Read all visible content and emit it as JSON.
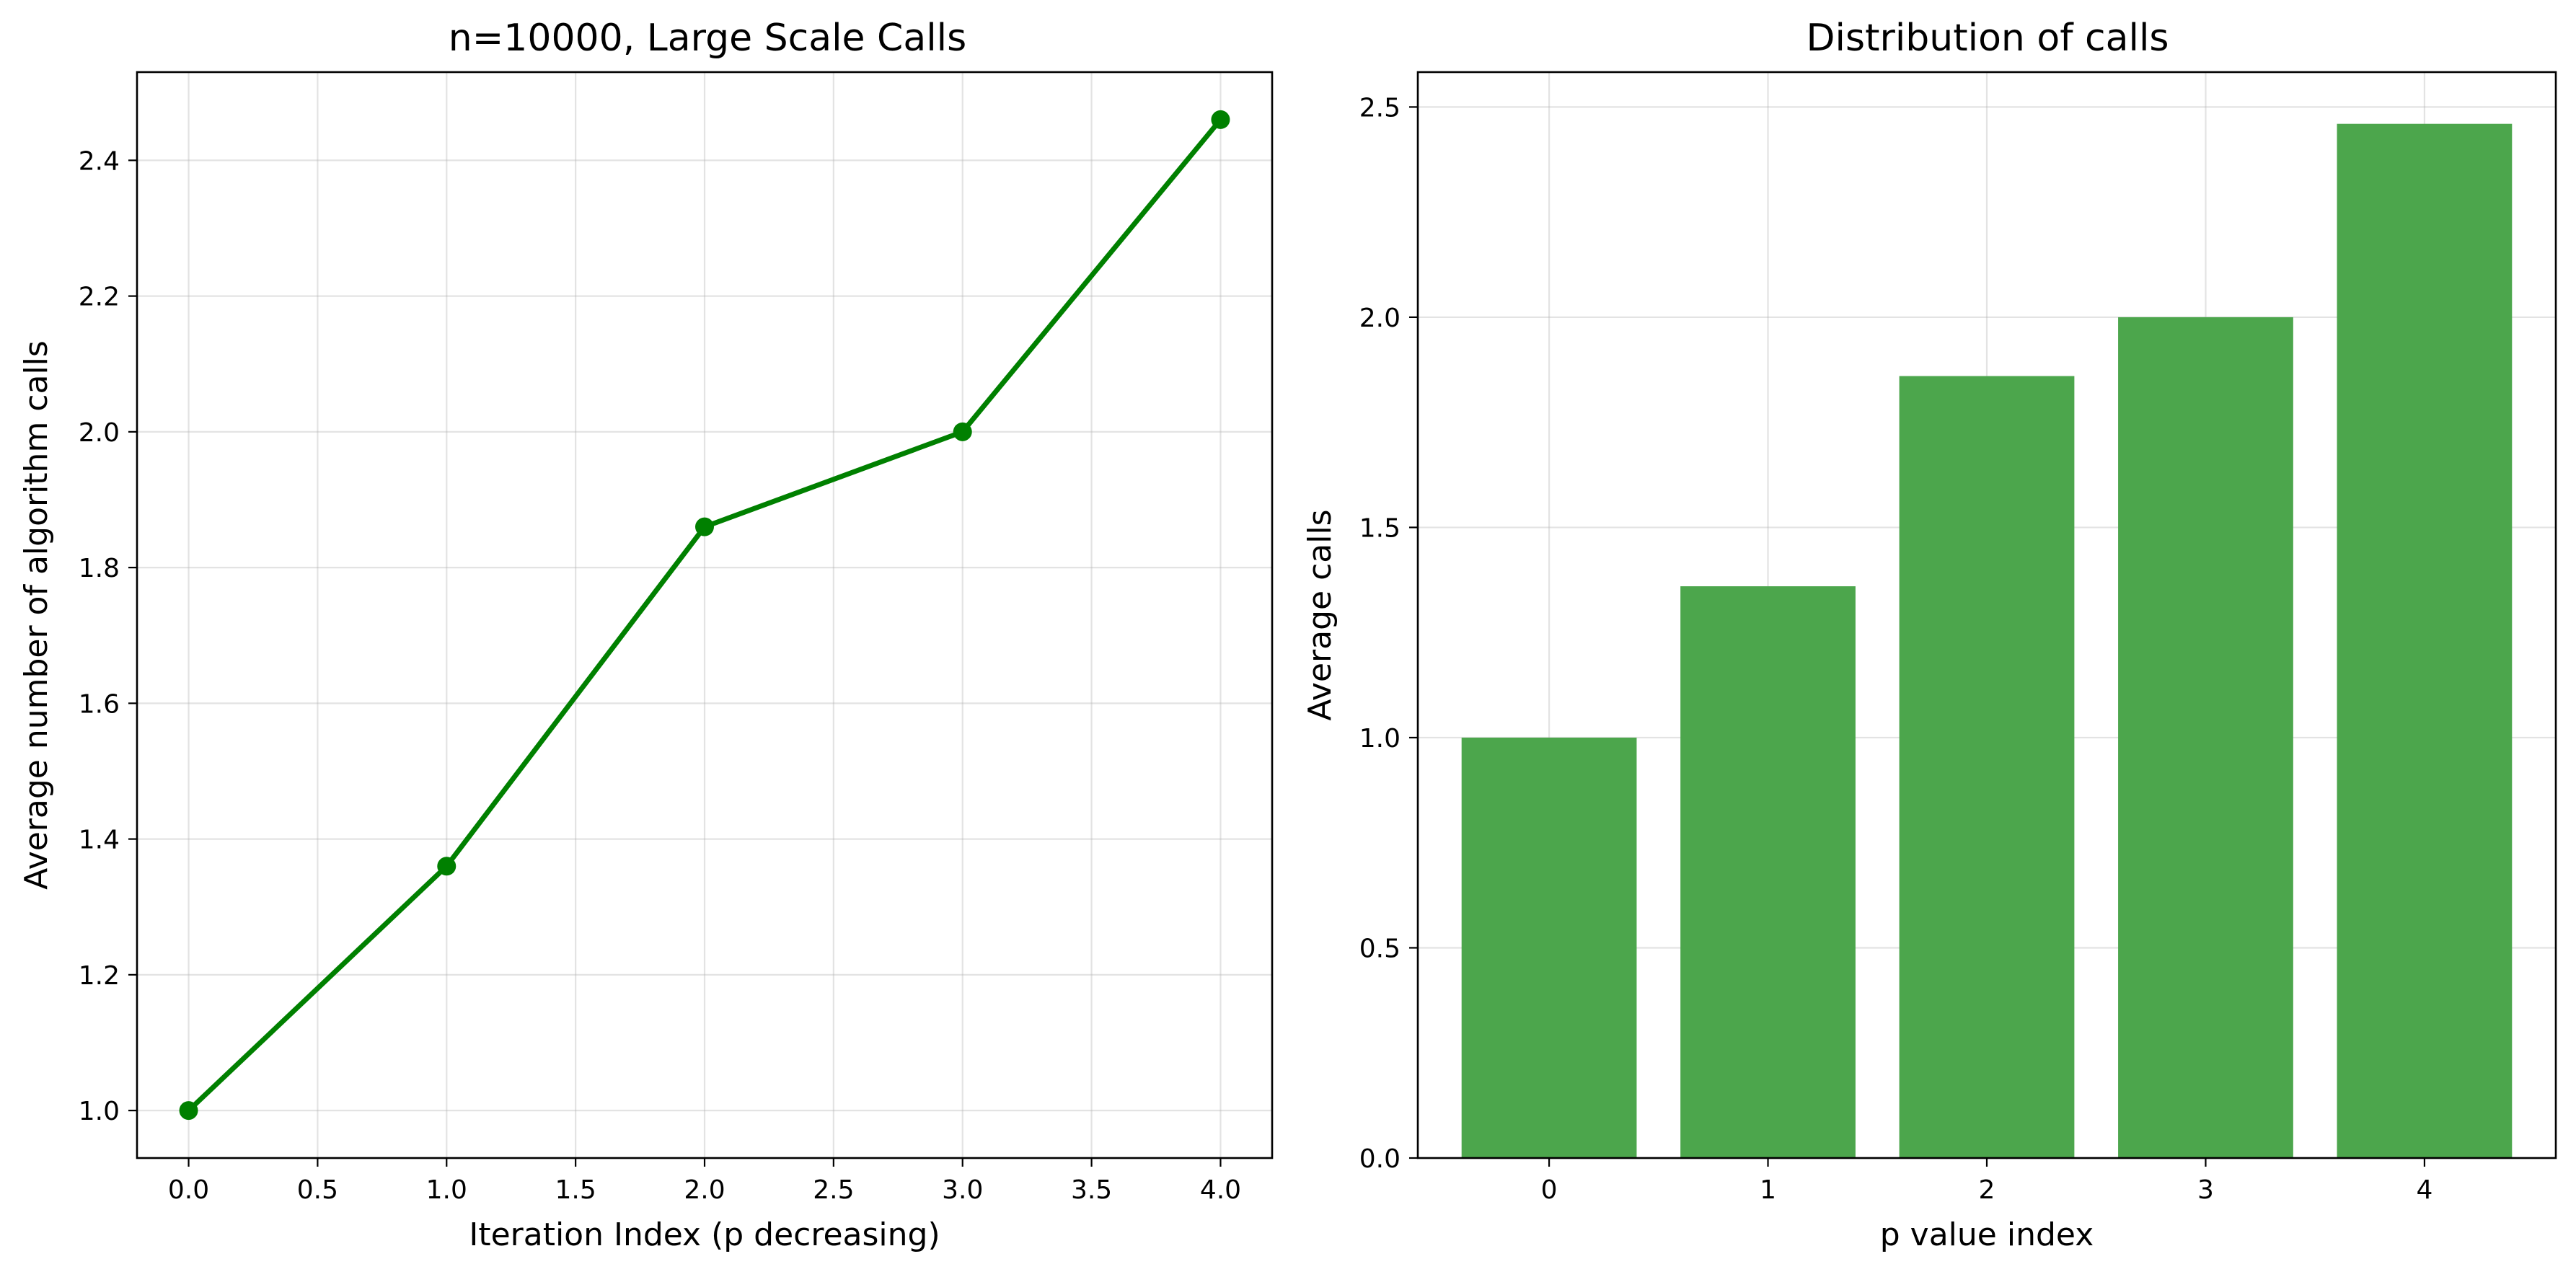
{
  "chart_data": [
    {
      "type": "line",
      "title": "n=10000, Large Scale Calls",
      "xlabel": "Iteration Index (p decreasing)",
      "ylabel": "Average number of algorithm calls",
      "xlim": [
        -0.2,
        4.2
      ],
      "ylim": [
        0.93,
        2.53
      ],
      "xticks": [
        0.0,
        0.5,
        1.0,
        1.5,
        2.0,
        2.5,
        3.0,
        3.5,
        4.0
      ],
      "xtick_labels": [
        "0.0",
        "0.5",
        "1.0",
        "1.5",
        "2.0",
        "2.5",
        "3.0",
        "3.5",
        "4.0"
      ],
      "yticks": [
        1.0,
        1.2,
        1.4,
        1.6,
        1.8,
        2.0,
        2.2,
        2.4
      ],
      "ytick_labels": [
        "1.0",
        "1.2",
        "1.4",
        "1.6",
        "1.8",
        "2.0",
        "2.2",
        "2.4"
      ],
      "grid": true,
      "series": [
        {
          "color": "#008000",
          "marker": "circle",
          "x": [
            0,
            1,
            2,
            3,
            4
          ],
          "values": [
            1.0,
            1.36,
            1.86,
            2.0,
            2.46
          ]
        }
      ]
    },
    {
      "type": "bar",
      "title": "Distribution of calls",
      "xlabel": "p value index",
      "ylabel": "Average calls",
      "categories": [
        "0",
        "1",
        "2",
        "3",
        "4"
      ],
      "values": [
        1.0,
        1.36,
        1.86,
        2.0,
        2.46
      ],
      "xlim": [
        -0.6,
        4.6
      ],
      "ylim": [
        0,
        2.583
      ],
      "yticks": [
        0.0,
        0.5,
        1.0,
        1.5,
        2.0,
        2.5
      ],
      "ytick_labels": [
        "0.0",
        "0.5",
        "1.0",
        "1.5",
        "2.0",
        "2.5"
      ],
      "grid": true,
      "bar_color": "#4ca64c"
    }
  ]
}
